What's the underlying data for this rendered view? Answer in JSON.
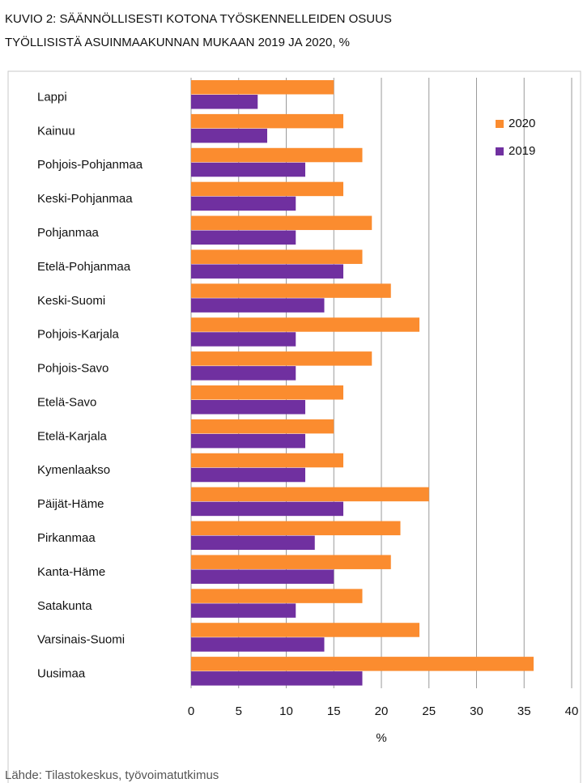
{
  "chart_data": {
    "type": "bar",
    "orientation": "horizontal",
    "title": [
      "KUVIO 2: SÄÄNNÖLLISESTI KOTONA TYÖSKENNELLEIDEN OSUUS",
      "TYÖLLISISTÄ ASUINMAAKUNNAN MUKAAN 2019 JA 2020, %"
    ],
    "categories": [
      "Lappi",
      "Kainuu",
      "Pohjois-Pohjanmaa",
      "Keski-Pohjanmaa",
      "Pohjanmaa",
      "Etelä-Pohjanmaa",
      "Keski-Suomi",
      "Pohjois-Karjala",
      "Pohjois-Savo",
      "Etelä-Savo",
      "Etelä-Karjala",
      "Kymenlaakso",
      "Päijät-Häme",
      "Pirkanmaa",
      "Kanta-Häme",
      "Satakunta",
      "Varsinais-Suomi",
      "Uusimaa"
    ],
    "series": [
      {
        "name": "2020",
        "color": "#fb8c2f",
        "values": [
          15,
          16,
          18,
          16,
          19,
          18,
          21,
          24,
          19,
          16,
          15,
          16,
          25,
          22,
          21,
          18,
          24,
          36
        ]
      },
      {
        "name": "2019",
        "color": "#7030a0",
        "values": [
          7,
          8,
          12,
          11,
          11,
          16,
          14,
          11,
          11,
          12,
          12,
          12,
          16,
          13,
          15,
          11,
          14,
          18
        ]
      }
    ],
    "xlabel": "%",
    "xlim": [
      0,
      40
    ],
    "xticks": [
      0,
      5,
      10,
      15,
      20,
      25,
      30,
      35,
      40
    ],
    "grid": true,
    "source": "Lähde: Tilastokeskus, työvoimatutkimus"
  }
}
